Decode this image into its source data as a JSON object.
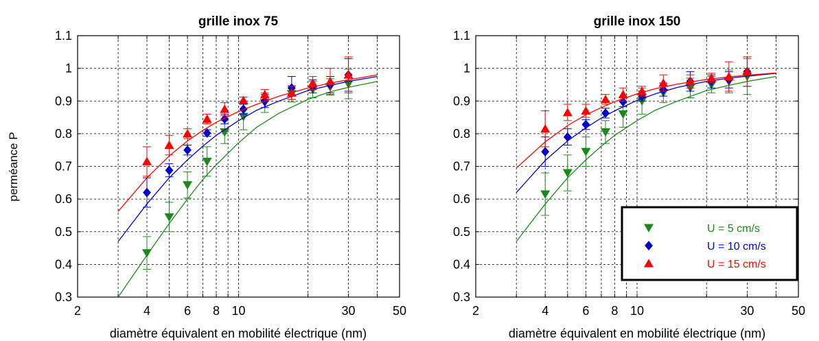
{
  "chart_data": [
    {
      "type": "scatter",
      "title": "grille inox 75",
      "xlabel": "diamètre équivalent en mobilité électrique (nm)",
      "ylabel": "perméance P",
      "x_scale": "log",
      "xlim": [
        2,
        50
      ],
      "ylim": [
        0.3,
        1.1
      ],
      "xticks": [
        2,
        4,
        6,
        8,
        10,
        30,
        50
      ],
      "xticklabels": [
        "2",
        "4",
        "6",
        "8",
        "10",
        "30",
        "50"
      ],
      "xgrid": [
        2,
        3,
        4,
        5,
        6,
        7,
        8,
        9,
        10,
        20,
        30,
        40,
        50
      ],
      "yticks": [
        0.3,
        0.4,
        0.5,
        0.6,
        0.7,
        0.8,
        0.9,
        1,
        1.1
      ],
      "yticklabels": [
        "0.3",
        "0.4",
        "0.5",
        "0.6",
        "0.7",
        "0.8",
        "0.9",
        "1",
        "1.1"
      ],
      "grid": true,
      "series": [
        {
          "name": "U = 5 cm/s",
          "color": "#1a8a1a",
          "marker": "triangle-down",
          "x": [
            4,
            5,
            6,
            7.3,
            8.7,
            10.5,
            13,
            17,
            21,
            25,
            30
          ],
          "y": [
            0.435,
            0.545,
            0.643,
            0.715,
            0.805,
            0.852,
            0.895,
            0.922,
            0.935,
            0.943,
            0.952
          ],
          "err": [
            0.05,
            0.045,
            0.04,
            0.045,
            0.035,
            0.04,
            0.03,
            0.025,
            0.025,
            0.025,
            0.045
          ],
          "fit_x": [
            3,
            4,
            5,
            6,
            7,
            8,
            10,
            12,
            15,
            20,
            25,
            30,
            40
          ],
          "fit_y": [
            0.3,
            0.428,
            0.525,
            0.6,
            0.66,
            0.705,
            0.772,
            0.82,
            0.863,
            0.905,
            0.928,
            0.942,
            0.96
          ]
        },
        {
          "name": "U = 10 cm/s",
          "color": "#0000cc",
          "marker": "diamond",
          "x": [
            4,
            5,
            6,
            7.3,
            8.7,
            10.5,
            13,
            17,
            21,
            25,
            30
          ],
          "y": [
            0.62,
            0.688,
            0.75,
            0.802,
            0.845,
            0.875,
            0.9,
            0.94,
            0.945,
            0.95,
            0.98
          ],
          "err": [
            0.045,
            0.02,
            0.015,
            0.01,
            0.015,
            0.015,
            0.02,
            0.035,
            0.02,
            0.025,
            0.05
          ],
          "fit_x": [
            3,
            4,
            5,
            6,
            7,
            8,
            10,
            12,
            15,
            20,
            25,
            30,
            40
          ],
          "fit_y": [
            0.47,
            0.585,
            0.665,
            0.72,
            0.762,
            0.795,
            0.84,
            0.872,
            0.9,
            0.932,
            0.948,
            0.96,
            0.975
          ]
        },
        {
          "name": "U = 15 cm/s",
          "color": "#ff0000",
          "marker": "triangle-up",
          "x": [
            4,
            5,
            6,
            7.3,
            8.7,
            10.5,
            13,
            17,
            21,
            25,
            30
          ],
          "y": [
            0.715,
            0.765,
            0.8,
            0.845,
            0.875,
            0.902,
            0.92,
            0.925,
            0.955,
            0.96,
            0.98
          ],
          "err": [
            0.045,
            0.03,
            0.015,
            0.015,
            0.02,
            0.01,
            0.015,
            0.02,
            0.02,
            0.04,
            0.055
          ],
          "fit_x": [
            3,
            4,
            5,
            6,
            7,
            8,
            10,
            12,
            15,
            20,
            25,
            30,
            40
          ],
          "fit_y": [
            0.562,
            0.665,
            0.732,
            0.778,
            0.81,
            0.835,
            0.868,
            0.89,
            0.915,
            0.94,
            0.955,
            0.965,
            0.98
          ]
        }
      ]
    },
    {
      "type": "scatter",
      "title": "grille inox 150",
      "xlabel": "diamètre équivalent en mobilité électrique (nm)",
      "ylabel": "",
      "x_scale": "log",
      "xlim": [
        2,
        50
      ],
      "ylim": [
        0.3,
        1.1
      ],
      "xticks": [
        2,
        4,
        6,
        8,
        10,
        30,
        50
      ],
      "xticklabels": [
        "2",
        "4",
        "6",
        "8",
        "10",
        "30",
        "50"
      ],
      "xgrid": [
        2,
        3,
        4,
        5,
        6,
        7,
        8,
        9,
        10,
        20,
        30,
        40,
        50
      ],
      "yticks": [
        0.3,
        0.4,
        0.5,
        0.6,
        0.7,
        0.8,
        0.9,
        1,
        1.1
      ],
      "yticklabels": [
        "0.3",
        "0.4",
        "0.5",
        "0.6",
        "0.7",
        "0.8",
        "0.9",
        "1",
        "1.1"
      ],
      "grid": true,
      "legend_position": "bottom-right",
      "series": [
        {
          "name": "U = 5 cm/s",
          "color": "#1a8a1a",
          "marker": "triangle-down",
          "x": [
            4,
            5,
            6,
            7.3,
            8.7,
            10.5,
            13,
            17,
            21,
            25,
            30
          ],
          "y": [
            0.615,
            0.68,
            0.745,
            0.805,
            0.86,
            0.9,
            0.925,
            0.94,
            0.95,
            0.96,
            0.975
          ],
          "err": [
            0.065,
            0.055,
            0.045,
            0.035,
            0.04,
            0.04,
            0.03,
            0.03,
            0.025,
            0.035,
            0.055
          ],
          "fit_x": [
            3,
            4,
            5,
            6,
            7,
            8,
            10,
            12,
            15,
            20,
            25,
            30,
            40
          ],
          "fit_y": [
            0.47,
            0.585,
            0.665,
            0.72,
            0.762,
            0.795,
            0.84,
            0.872,
            0.9,
            0.932,
            0.948,
            0.96,
            0.975
          ]
        },
        {
          "name": "U = 10 cm/s",
          "color": "#0000cc",
          "marker": "diamond",
          "x": [
            4,
            5,
            6,
            7.3,
            8.7,
            10.5,
            13,
            17,
            21,
            25,
            30
          ],
          "y": [
            0.745,
            0.79,
            0.828,
            0.863,
            0.898,
            0.915,
            0.935,
            0.96,
            0.96,
            0.965,
            0.99
          ],
          "err": [
            0.045,
            0.025,
            0.015,
            0.015,
            0.015,
            0.015,
            0.02,
            0.03,
            0.02,
            0.025,
            0.045
          ],
          "fit_x": [
            3,
            4,
            5,
            6,
            7,
            8,
            10,
            12,
            15,
            20,
            25,
            30,
            40
          ],
          "fit_y": [
            0.62,
            0.718,
            0.778,
            0.818,
            0.848,
            0.87,
            0.902,
            0.922,
            0.942,
            0.96,
            0.97,
            0.976,
            0.985
          ]
        },
        {
          "name": "U = 15 cm/s",
          "color": "#ff0000",
          "marker": "triangle-up",
          "x": [
            4,
            5,
            6,
            7.3,
            8.7,
            10.5,
            13,
            17,
            21,
            25,
            30
          ],
          "y": [
            0.815,
            0.865,
            0.87,
            0.905,
            0.92,
            0.93,
            0.955,
            0.96,
            0.97,
            0.975,
            0.99
          ],
          "err": [
            0.055,
            0.025,
            0.02,
            0.015,
            0.02,
            0.015,
            0.025,
            0.02,
            0.015,
            0.045,
            0.045
          ],
          "fit_x": [
            3,
            4,
            5,
            6,
            7,
            8,
            10,
            12,
            15,
            20,
            25,
            30,
            40
          ],
          "fit_y": [
            0.695,
            0.775,
            0.825,
            0.858,
            0.88,
            0.898,
            0.922,
            0.938,
            0.952,
            0.966,
            0.974,
            0.979,
            0.986
          ]
        }
      ]
    }
  ]
}
